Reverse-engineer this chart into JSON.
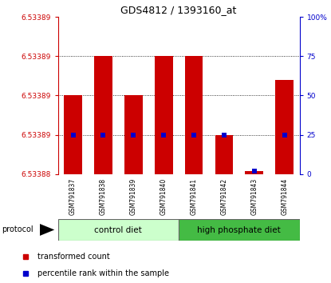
{
  "title": "GDS4812 / 1393160_at",
  "samples": [
    "GSM791837",
    "GSM791838",
    "GSM791839",
    "GSM791840",
    "GSM791841",
    "GSM791842",
    "GSM791843",
    "GSM791844"
  ],
  "red_pct": [
    50,
    75,
    50,
    75,
    75,
    25,
    2,
    60
  ],
  "blue_pct": [
    25,
    25,
    25,
    25,
    25,
    25,
    2,
    25
  ],
  "y_min": 6.53388,
  "y_max": 6.533897,
  "left_ytick_pcts": [
    0,
    25,
    50,
    75,
    100
  ],
  "left_ytick_labels": [
    "6.53388",
    "6.53389",
    "6.53389",
    "6.53389",
    "6.53389"
  ],
  "right_ytick_vals": [
    0,
    25,
    50,
    75,
    100
  ],
  "right_ytick_labels": [
    "0",
    "25",
    "50",
    "75",
    "100%"
  ],
  "dotted_pcts": [
    25,
    50,
    75
  ],
  "left_color": "#cc0000",
  "right_color": "#0000cc",
  "bar_color": "#cc0000",
  "blue_marker_color": "#0000cc",
  "group1_color": "#ccffcc",
  "group2_color": "#44bb44",
  "group_label1": "control diet",
  "group_label2": "high phosphate diet",
  "legend_red": "transformed count",
  "legend_blue": "percentile rank within the sample",
  "protocol_label": "protocol",
  "n_group1": 4,
  "n_group2": 4
}
